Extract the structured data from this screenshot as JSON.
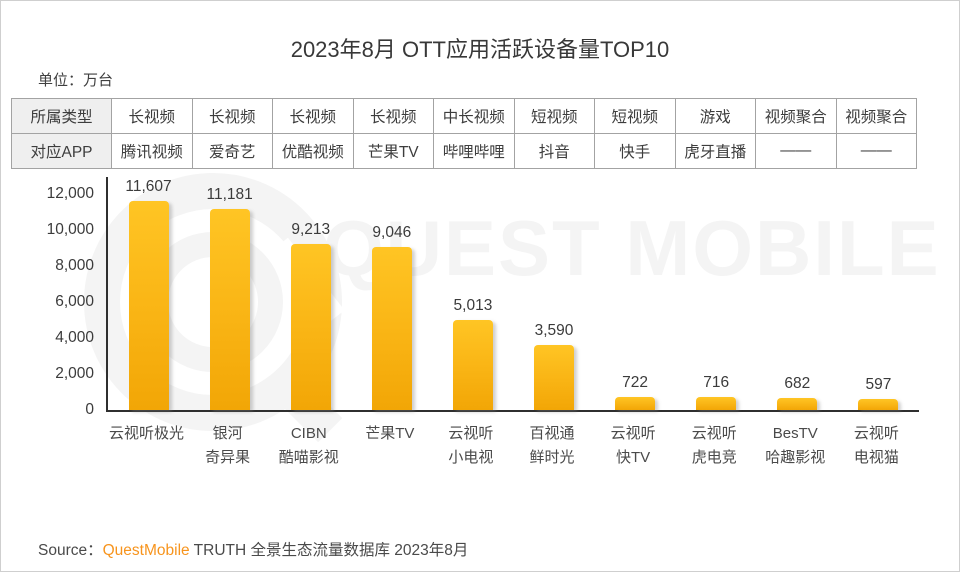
{
  "title": "2023年8月 OTT应用活跃设备量TOP10",
  "unit_label": "单位：万台",
  "watermark": {
    "text": "QUEST MOBILE",
    "color": "#f4f4f4"
  },
  "table": {
    "rows": [
      {
        "header": "所属类型",
        "cells": [
          "长视频",
          "长视频",
          "长视频",
          "长视频",
          "中长视频",
          "短视频",
          "短视频",
          "游戏",
          "视频聚合",
          "视频聚合"
        ]
      },
      {
        "header": "对应APP",
        "cells": [
          "腾讯视频",
          "爱奇艺",
          "优酷视频",
          "芒果TV",
          "哔哩哔哩",
          "抖音",
          "快手",
          "虎牙直播",
          "——",
          "——"
        ]
      }
    ]
  },
  "chart_data": {
    "type": "bar",
    "title": "2023年8月 OTT应用活跃设备量TOP10",
    "unit": "万台",
    "categories": [
      "云视听极光",
      "银河奇异果",
      "CIBN酷喵影视",
      "芒果TV",
      "云视听小电视",
      "百视通鲜时光",
      "云视听快TV",
      "云视听虎电竞",
      "BesTV哈趣影视",
      "云视听电视猫"
    ],
    "category_lines": [
      [
        "云视听极光"
      ],
      [
        "银河",
        "奇异果"
      ],
      [
        "CIBN",
        "酷喵影视"
      ],
      [
        "芒果TV"
      ],
      [
        "云视听",
        "小电视"
      ],
      [
        "百视通",
        "鲜时光"
      ],
      [
        "云视听",
        "快TV"
      ],
      [
        "云视听",
        "虎电竞"
      ],
      [
        "BesTV",
        "哈趣影视"
      ],
      [
        "云视听",
        "电视猫"
      ]
    ],
    "values": [
      11607,
      11181,
      9213,
      9046,
      5013,
      3590,
      722,
      716,
      682,
      597
    ],
    "value_labels": [
      "11,607",
      "11,181",
      "9,213",
      "9,046",
      "5,013",
      "3,590",
      "722",
      "716",
      "682",
      "597"
    ],
    "xlabel": "",
    "ylabel": "万台",
    "ylim": [
      0,
      12000
    ],
    "yticks": [
      0,
      2000,
      4000,
      6000,
      8000,
      10000,
      12000
    ],
    "ytick_labels": [
      "0",
      "2,000",
      "4,000",
      "6,000",
      "8,000",
      "10,000",
      "12,000"
    ],
    "grid": false,
    "legend": false,
    "bar_color_top": "#ffc524",
    "bar_color_bottom": "#f2a606"
  },
  "source": {
    "prefix": "Source：",
    "brand": "QuestMobile",
    "suffix": " TRUTH 全景生态流量数据库 2023年8月",
    "brand_color": "#f7941d"
  }
}
